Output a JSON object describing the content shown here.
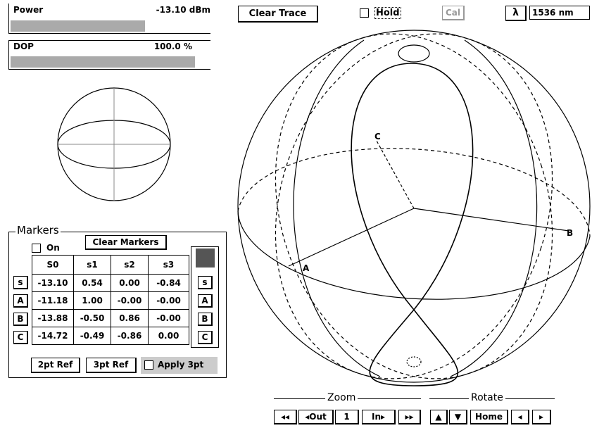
{
  "power": {
    "label": "Power",
    "value": "-13.10 dBm"
  },
  "dop": {
    "label": "DOP",
    "value": "100.0 %"
  },
  "toolbar": {
    "clear_trace": "Clear Trace",
    "hold": "Hold",
    "cal": "Cal",
    "lambda": "λ",
    "wavelength": "1536 nm"
  },
  "sphere": {
    "labels": [
      "A",
      "B",
      "C"
    ]
  },
  "markers": {
    "title": "Markers",
    "on": "On",
    "clear": "Clear Markers",
    "header": [
      "S0",
      "s1",
      "s2",
      "s3"
    ],
    "rows": [
      {
        "button": "s",
        "values": [
          "-13.10",
          "0.54",
          "0.00",
          "-0.84"
        ]
      },
      {
        "button": "A",
        "values": [
          "-11.18",
          "1.00",
          "-0.00",
          "-0.00"
        ]
      },
      {
        "button": "B",
        "values": [
          "-13.88",
          "-0.50",
          "0.86",
          "-0.00"
        ]
      },
      {
        "button": "C",
        "values": [
          "-14.72",
          "-0.49",
          "-0.86",
          "0.00"
        ]
      }
    ],
    "right_buttons": [
      "s",
      "A",
      "B",
      "C"
    ],
    "ref2": "2pt Ref",
    "ref3": "3pt Ref",
    "apply": "Apply 3pt"
  },
  "zoom": {
    "title": "Zoom",
    "buttons": [
      "◂◂",
      "◂Out",
      "1",
      "In▸",
      "▸▸"
    ]
  },
  "rotate": {
    "title": "Rotate",
    "buttons": [
      "▲",
      "▼",
      "Home",
      "◂",
      "▸"
    ]
  }
}
